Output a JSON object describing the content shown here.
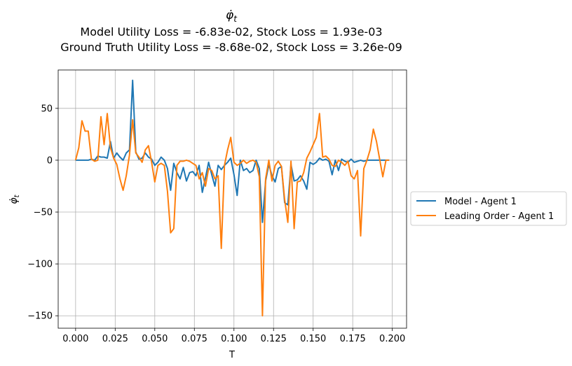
{
  "chart_data": {
    "type": "line",
    "title": {
      "symbol": "φ̇",
      "symbol_sub": "t",
      "line2": "Model Utility Loss = -6.83e-02, Stock Loss = 1.93e-03",
      "line3": "Ground Truth Utility Loss = -8.68e-02, Stock Loss = 3.26e-09"
    },
    "xlabel": "T",
    "ylabel": {
      "symbol": "φ̇",
      "sub": "t"
    },
    "xlim": [
      -0.011,
      0.209
    ],
    "ylim": [
      -162,
      87
    ],
    "xticks": [
      0.0,
      0.025,
      0.05,
      0.075,
      0.1,
      0.125,
      0.15,
      0.175,
      0.2
    ],
    "xtick_labels": [
      "0.000",
      "0.025",
      "0.050",
      "0.075",
      "0.100",
      "0.125",
      "0.150",
      "0.175",
      "0.200"
    ],
    "yticks": [
      -150,
      -100,
      -50,
      0,
      50
    ],
    "ytick_labels": [
      "−150",
      "−100",
      "−50",
      "0",
      "50"
    ],
    "grid": true,
    "legend_position": "outside-right",
    "x": [
      0.0,
      0.002,
      0.004,
      0.006,
      0.008,
      0.01,
      0.012,
      0.014,
      0.016,
      0.018,
      0.02,
      0.022,
      0.024,
      0.026,
      0.028,
      0.03,
      0.032,
      0.034,
      0.036,
      0.038,
      0.04,
      0.042,
      0.044,
      0.046,
      0.048,
      0.05,
      0.052,
      0.054,
      0.056,
      0.058,
      0.06,
      0.062,
      0.064,
      0.066,
      0.068,
      0.07,
      0.072,
      0.074,
      0.076,
      0.078,
      0.08,
      0.082,
      0.084,
      0.086,
      0.088,
      0.09,
      0.092,
      0.094,
      0.096,
      0.098,
      0.1,
      0.102,
      0.104,
      0.106,
      0.108,
      0.11,
      0.112,
      0.114,
      0.116,
      0.118,
      0.12,
      0.122,
      0.124,
      0.126,
      0.128,
      0.13,
      0.132,
      0.134,
      0.136,
      0.138,
      0.14,
      0.142,
      0.144,
      0.146,
      0.148,
      0.15,
      0.152,
      0.154,
      0.156,
      0.158,
      0.16,
      0.162,
      0.164,
      0.166,
      0.168,
      0.17,
      0.172,
      0.174,
      0.176,
      0.178,
      0.18,
      0.182,
      0.184,
      0.186,
      0.188,
      0.19,
      0.192,
      0.194,
      0.196,
      0.198
    ],
    "series": [
      {
        "name": "Model - Agent 1",
        "color": "#1f77b4",
        "values": [
          0,
          0,
          0,
          0,
          0,
          1,
          0,
          4,
          3,
          3,
          2,
          18,
          2,
          7,
          3,
          0,
          7,
          10,
          77,
          8,
          1,
          2,
          7,
          3,
          1,
          -5,
          -2,
          3,
          0,
          -8,
          -29,
          -3,
          -12,
          -18,
          -7,
          -20,
          -12,
          -11,
          -15,
          -5,
          -31,
          -17,
          -2,
          -14,
          -25,
          -5,
          -9,
          -5,
          -2,
          2,
          -14,
          -34,
          0,
          -10,
          -8,
          -12,
          -10,
          0,
          -8,
          -60,
          -20,
          -4,
          -15,
          -21,
          -8,
          -6,
          -41,
          -43,
          -4,
          -20,
          -19,
          -15,
          -20,
          -28,
          -2,
          -4,
          -2,
          2,
          0,
          1,
          -1,
          -14,
          0,
          -10,
          1,
          -1,
          -2,
          1,
          -2,
          -1,
          0,
          -1,
          0,
          0,
          0,
          0,
          0,
          0,
          0,
          0
        ]
      },
      {
        "name": "Leading Order - Agent 1",
        "color": "#ff7f0e",
        "values": [
          0,
          12,
          38,
          28,
          28,
          1,
          -1,
          0,
          42,
          15,
          45,
          12,
          2,
          -4,
          -18,
          -29,
          -15,
          5,
          39,
          7,
          3,
          -2,
          10,
          14,
          -2,
          -21,
          -5,
          -3,
          -5,
          -30,
          -70,
          -66,
          -5,
          -1,
          -1,
          0,
          -1,
          -3,
          -5,
          -18,
          -12,
          -25,
          -8,
          -10,
          -18,
          -15,
          -85,
          -5,
          10,
          22,
          -2,
          -5,
          -3,
          0,
          -3,
          -1,
          0,
          -2,
          -16,
          -150,
          -18,
          0,
          -20,
          -5,
          -1,
          -6,
          -38,
          -60,
          -1,
          -66,
          -21,
          -20,
          -12,
          2,
          8,
          15,
          22,
          45,
          3,
          4,
          1,
          -5,
          -6,
          0,
          -2,
          -5,
          -1,
          -15,
          -18,
          -10,
          -73,
          -8,
          0,
          10,
          30,
          18,
          1,
          -16,
          0,
          0
        ]
      }
    ]
  }
}
